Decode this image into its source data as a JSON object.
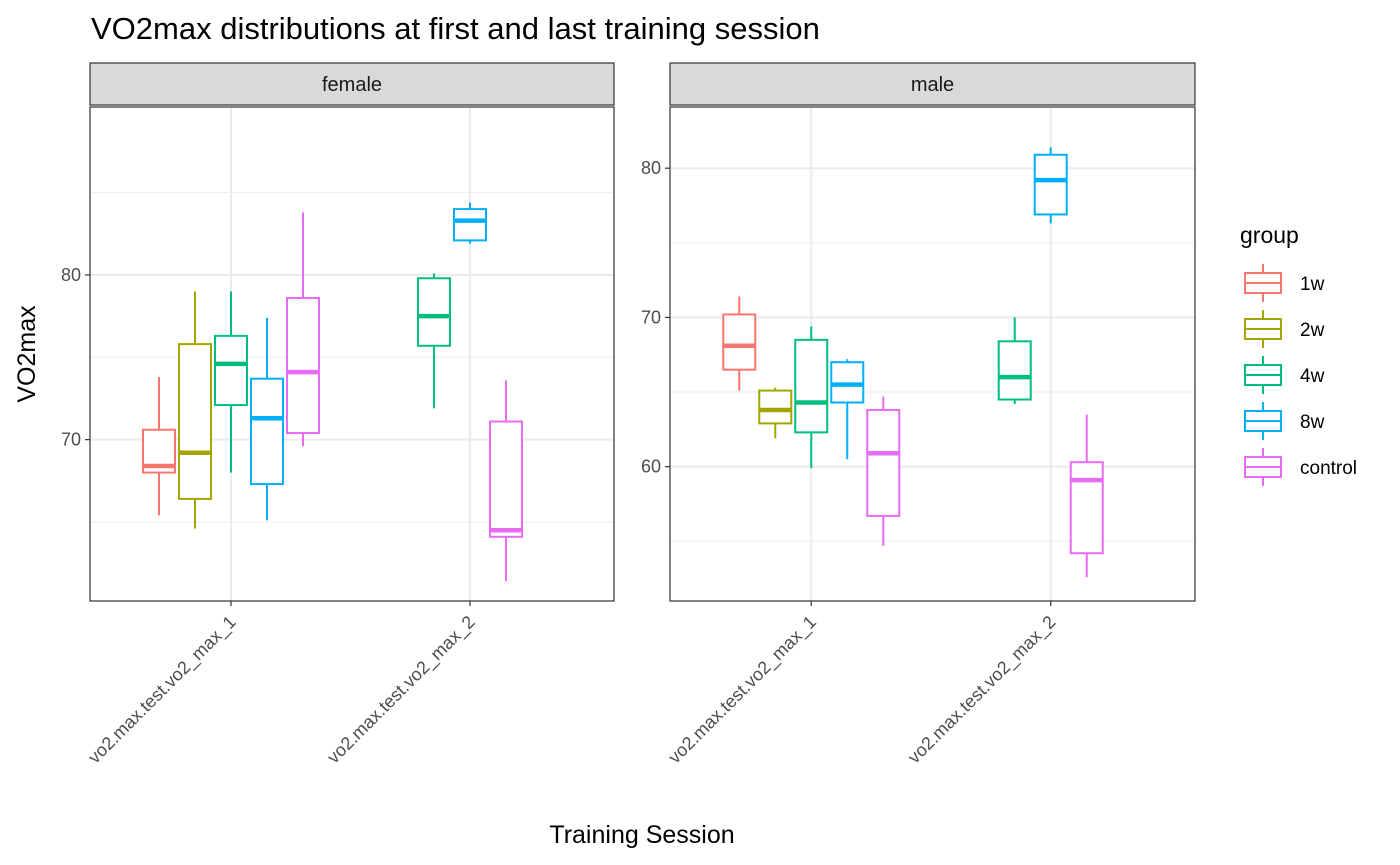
{
  "chart_data": {
    "type": "boxplot",
    "title": "VO2max distributions at first and last training session",
    "xlabel": "Training Session",
    "ylabel": "VO2max",
    "categories": [
      "vo2.max.test.vo2_max_1",
      "vo2.max.test.vo2_max_2"
    ],
    "legend": {
      "title": "group",
      "position": "right",
      "entries": [
        {
          "name": "1w",
          "color": "#F8766D"
        },
        {
          "name": "2w",
          "color": "#A3A500"
        },
        {
          "name": "4w",
          "color": "#00BF7D"
        },
        {
          "name": "8w",
          "color": "#00B0F6"
        },
        {
          "name": "control",
          "color": "#E76BF3"
        }
      ]
    },
    "grid": true,
    "facets": [
      {
        "label": "female",
        "ylim": [
          60.2,
          90.2
        ],
        "yticks": [
          70,
          80
        ],
        "boxes": [
          {
            "category": "vo2.max.test.vo2_max_1",
            "group": "1w",
            "min": 65.4,
            "q1": 68.0,
            "median": 68.4,
            "q3": 70.6,
            "max": 73.8
          },
          {
            "category": "vo2.max.test.vo2_max_1",
            "group": "2w",
            "min": 64.6,
            "q1": 66.4,
            "median": 69.2,
            "q3": 75.8,
            "max": 79.0
          },
          {
            "category": "vo2.max.test.vo2_max_1",
            "group": "4w",
            "min": 68.0,
            "q1": 72.1,
            "median": 74.6,
            "q3": 76.3,
            "max": 79.0
          },
          {
            "category": "vo2.max.test.vo2_max_1",
            "group": "8w",
            "min": 65.1,
            "q1": 67.3,
            "median": 71.3,
            "q3": 73.7,
            "max": 77.4
          },
          {
            "category": "vo2.max.test.vo2_max_1",
            "group": "control",
            "min": 69.6,
            "q1": 70.4,
            "median": 74.1,
            "q3": 78.6,
            "max": 83.8
          },
          {
            "category": "vo2.max.test.vo2_max_2",
            "group": "4w",
            "min": 71.9,
            "q1": 75.7,
            "median": 77.5,
            "q3": 79.8,
            "max": 80.1
          },
          {
            "category": "vo2.max.test.vo2_max_2",
            "group": "8w",
            "min": 81.9,
            "q1": 82.1,
            "median": 83.3,
            "q3": 84.0,
            "max": 84.4
          },
          {
            "category": "vo2.max.test.vo2_max_2",
            "group": "control",
            "min": 61.4,
            "q1": 64.1,
            "median": 64.5,
            "q3": 71.1,
            "max": 73.6
          }
        ]
      },
      {
        "label": "male",
        "ylim": [
          51.0,
          84.1
        ],
        "yticks": [
          60,
          70,
          80
        ],
        "boxes": [
          {
            "category": "vo2.max.test.vo2_max_1",
            "group": "1w",
            "min": 65.1,
            "q1": 66.5,
            "median": 68.1,
            "q3": 70.2,
            "max": 71.4
          },
          {
            "category": "vo2.max.test.vo2_max_1",
            "group": "2w",
            "min": 61.9,
            "q1": 62.9,
            "median": 63.8,
            "q3": 65.1,
            "max": 65.3
          },
          {
            "category": "vo2.max.test.vo2_max_1",
            "group": "4w",
            "min": 59.9,
            "q1": 62.3,
            "median": 64.3,
            "q3": 68.5,
            "max": 69.4
          },
          {
            "category": "vo2.max.test.vo2_max_1",
            "group": "8w",
            "min": 60.5,
            "q1": 64.3,
            "median": 65.5,
            "q3": 67.0,
            "max": 67.2
          },
          {
            "category": "vo2.max.test.vo2_max_1",
            "group": "control",
            "min": 54.7,
            "q1": 56.7,
            "median": 60.9,
            "q3": 63.8,
            "max": 64.7
          },
          {
            "category": "vo2.max.test.vo2_max_2",
            "group": "4w",
            "min": 64.2,
            "q1": 64.5,
            "median": 66.0,
            "q3": 68.4,
            "max": 70.0
          },
          {
            "category": "vo2.max.test.vo2_max_2",
            "group": "8w",
            "min": 76.3,
            "q1": 76.9,
            "median": 79.2,
            "q3": 80.9,
            "max": 81.4
          },
          {
            "category": "vo2.max.test.vo2_max_2",
            "group": "control",
            "min": 52.6,
            "q1": 54.2,
            "median": 59.1,
            "q3": 60.3,
            "max": 63.5
          }
        ]
      }
    ]
  }
}
